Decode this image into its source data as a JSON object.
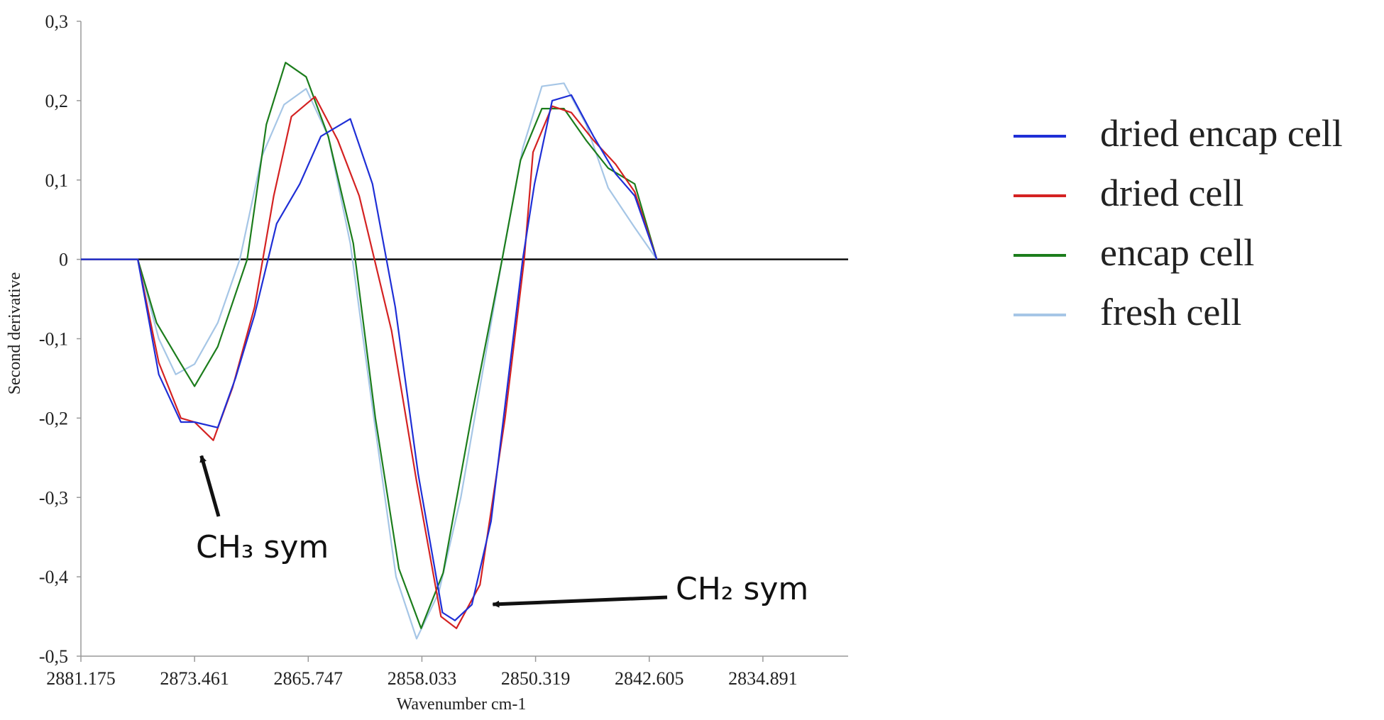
{
  "chart_data": {
    "type": "line",
    "xlabel": "Wavenumber cm-1",
    "ylabel": "Second derivative",
    "x_ticks": [
      "2881.175",
      "2873.461",
      "2865.747",
      "2858.033",
      "2850.319",
      "2842.605",
      "2834.891"
    ],
    "y_ticks": [
      "0,3",
      "0,2",
      "0,1",
      "0",
      "-0,1",
      "-0,2",
      "-0,3",
      "-0,4",
      "-0,5"
    ],
    "xlim": [
      2881.175,
      2829.106
    ],
    "ylim": [
      -0.5,
      0.3
    ],
    "x_reversed": true,
    "grid": false,
    "legend_position": "right",
    "series": [
      {
        "name": "dried encap cell",
        "color": "#1f2fd6",
        "points": [
          [
            2881.175,
            0
          ],
          [
            2877.318,
            0
          ],
          [
            2875.89,
            -0.145
          ],
          [
            2874.39,
            -0.205
          ],
          [
            2873.461,
            -0.205
          ],
          [
            2871.89,
            -0.212
          ],
          [
            2870.69,
            -0.15
          ],
          [
            2869.39,
            -0.07
          ],
          [
            2867.89,
            0.045
          ],
          [
            2866.32,
            0.095
          ],
          [
            2864.89,
            0.155
          ],
          [
            2862.89,
            0.177
          ],
          [
            2861.39,
            0.095
          ],
          [
            2859.84,
            -0.06
          ],
          [
            2858.29,
            -0.27
          ],
          [
            2856.64,
            -0.445
          ],
          [
            2855.79,
            -0.455
          ],
          [
            2854.64,
            -0.435
          ],
          [
            2853.34,
            -0.33
          ],
          [
            2851.19,
            0
          ],
          [
            2850.39,
            0.095
          ],
          [
            2849.19,
            0.2
          ],
          [
            2847.89,
            0.207
          ],
          [
            2846.39,
            0.155
          ],
          [
            2844.89,
            0.108
          ],
          [
            2843.59,
            0.08
          ],
          [
            2842.09,
            0
          ]
        ]
      },
      {
        "name": "dried cell",
        "color": "#d42222",
        "points": [
          [
            2881.175,
            0
          ],
          [
            2877.318,
            0
          ],
          [
            2875.89,
            -0.13
          ],
          [
            2874.39,
            -0.2
          ],
          [
            2873.461,
            -0.205
          ],
          [
            2872.19,
            -0.228
          ],
          [
            2870.89,
            -0.162
          ],
          [
            2869.39,
            -0.06
          ],
          [
            2868.09,
            0.08
          ],
          [
            2866.89,
            0.18
          ],
          [
            2865.29,
            0.205
          ],
          [
            2863.74,
            0.15
          ],
          [
            2862.29,
            0.08
          ],
          [
            2860.09,
            -0.09
          ],
          [
            2858.39,
            -0.28
          ],
          [
            2856.74,
            -0.45
          ],
          [
            2855.69,
            -0.465
          ],
          [
            2854.09,
            -0.41
          ],
          [
            2852.39,
            -0.2
          ],
          [
            2851.09,
            0
          ],
          [
            2850.49,
            0.135
          ],
          [
            2849.19,
            0.193
          ],
          [
            2847.89,
            0.185
          ],
          [
            2846.39,
            0.15
          ],
          [
            2844.89,
            0.12
          ],
          [
            2843.59,
            0.085
          ],
          [
            2842.09,
            0
          ]
        ]
      },
      {
        "name": "encap cell",
        "color": "#1c7d1c",
        "points": [
          [
            2881.175,
            0
          ],
          [
            2877.318,
            0
          ],
          [
            2876.04,
            -0.08
          ],
          [
            2874.44,
            -0.13
          ],
          [
            2873.461,
            -0.16
          ],
          [
            2871.89,
            -0.11
          ],
          [
            2869.89,
            0
          ],
          [
            2868.59,
            0.17
          ],
          [
            2867.29,
            0.248
          ],
          [
            2865.89,
            0.23
          ],
          [
            2864.39,
            0.155
          ],
          [
            2862.69,
            0.02
          ],
          [
            2861.19,
            -0.2
          ],
          [
            2859.59,
            -0.39
          ],
          [
            2858.09,
            -0.465
          ],
          [
            2856.59,
            -0.395
          ],
          [
            2854.69,
            -0.2
          ],
          [
            2852.59,
            0
          ],
          [
            2851.34,
            0.125
          ],
          [
            2849.89,
            0.19
          ],
          [
            2848.39,
            0.19
          ],
          [
            2846.89,
            0.15
          ],
          [
            2845.39,
            0.115
          ],
          [
            2843.59,
            0.095
          ],
          [
            2842.09,
            0
          ]
        ]
      },
      {
        "name": "fresh cell",
        "color": "#a6c6e6",
        "points": [
          [
            2881.175,
            0
          ],
          [
            2877.318,
            0
          ],
          [
            2875.89,
            -0.1
          ],
          [
            2874.74,
            -0.145
          ],
          [
            2873.461,
            -0.132
          ],
          [
            2871.89,
            -0.08
          ],
          [
            2870.39,
            0
          ],
          [
            2868.89,
            0.13
          ],
          [
            2867.39,
            0.195
          ],
          [
            2865.89,
            0.215
          ],
          [
            2864.39,
            0.155
          ],
          [
            2862.89,
            0.02
          ],
          [
            2861.29,
            -0.2
          ],
          [
            2859.79,
            -0.4
          ],
          [
            2858.39,
            -0.478
          ],
          [
            2856.89,
            -0.42
          ],
          [
            2855.39,
            -0.3
          ],
          [
            2852.59,
            0
          ],
          [
            2851.19,
            0.14
          ],
          [
            2849.89,
            0.218
          ],
          [
            2848.39,
            0.222
          ],
          [
            2846.89,
            0.17
          ],
          [
            2845.39,
            0.09
          ],
          [
            2843.59,
            0.04
          ],
          [
            2842.09,
            0
          ]
        ]
      }
    ],
    "annotations": [
      {
        "text": "CH₃ sym",
        "target": [
          2873.0,
          -0.235
        ]
      },
      {
        "text": "CH₂ sym",
        "target": [
          2853.7,
          -0.44
        ]
      }
    ]
  }
}
